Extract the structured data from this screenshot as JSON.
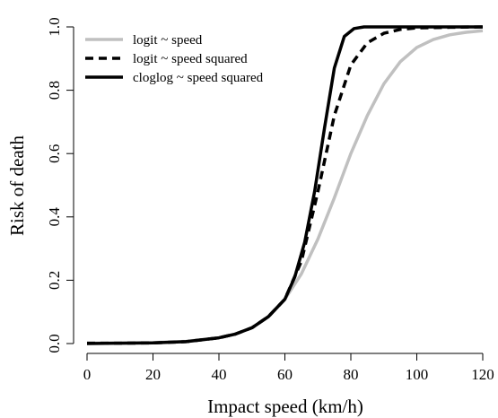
{
  "chart_data": {
    "type": "line",
    "title": "",
    "xlabel": "Impact speed (km/h)",
    "ylabel": "Risk of death",
    "xlim": [
      0,
      120
    ],
    "ylim": [
      0,
      1
    ],
    "xticks": [
      0,
      20,
      40,
      60,
      80,
      100,
      120
    ],
    "yticks": [
      "0.0",
      "0.2",
      "0.4",
      "0.6",
      "0.8",
      "1.0"
    ],
    "grid": false,
    "legend_position": "top-left",
    "series": [
      {
        "name": "logit ~ speed",
        "color": "#c0c0c0",
        "dash": "solid",
        "x": [
          0,
          10,
          20,
          30,
          40,
          45,
          50,
          55,
          60,
          65,
          70,
          75,
          80,
          85,
          90,
          95,
          100,
          105,
          110,
          115,
          120
        ],
        "y": [
          0.001,
          0.002,
          0.003,
          0.007,
          0.018,
          0.03,
          0.05,
          0.085,
          0.14,
          0.22,
          0.33,
          0.46,
          0.6,
          0.72,
          0.82,
          0.89,
          0.935,
          0.96,
          0.975,
          0.983,
          0.988
        ]
      },
      {
        "name": "logit ~ speed squared",
        "color": "#000000",
        "dash": "dashed",
        "x": [
          0,
          10,
          20,
          30,
          40,
          45,
          50,
          55,
          60,
          65,
          70,
          75,
          80,
          85,
          90,
          95,
          100,
          110,
          120
        ],
        "y": [
          0.001,
          0.001,
          0.002,
          0.006,
          0.018,
          0.03,
          0.05,
          0.085,
          0.14,
          0.26,
          0.48,
          0.72,
          0.88,
          0.95,
          0.98,
          0.992,
          0.997,
          0.999,
          1.0
        ]
      },
      {
        "name": "cloglog ~ speed squared",
        "color": "#000000",
        "dash": "solid",
        "x": [
          0,
          10,
          20,
          30,
          40,
          45,
          50,
          55,
          60,
          63,
          66,
          69,
          72,
          75,
          78,
          81,
          84,
          90,
          100,
          120
        ],
        "y": [
          0.0,
          0.001,
          0.002,
          0.006,
          0.018,
          0.03,
          0.05,
          0.085,
          0.14,
          0.21,
          0.32,
          0.48,
          0.68,
          0.87,
          0.97,
          0.995,
          1.0,
          1.0,
          1.0,
          1.0
        ]
      }
    ]
  }
}
